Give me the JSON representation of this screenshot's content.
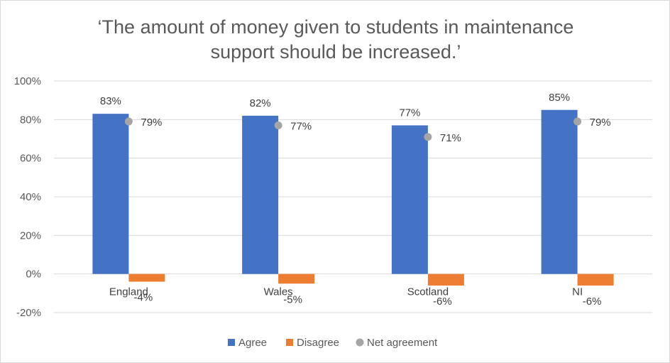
{
  "chart_data": {
    "type": "bar",
    "title_lines": [
      "‘The amount of money given to students in maintenance",
      "support should be increased.’"
    ],
    "categories": [
      "England",
      "Wales",
      "Scotland",
      "NI"
    ],
    "series": [
      {
        "name": "Agree",
        "kind": "bar",
        "color": "#4472c4",
        "values": [
          83,
          82,
          77,
          85
        ],
        "labels": [
          "83%",
          "82%",
          "77%",
          "85%"
        ]
      },
      {
        "name": "Disagree",
        "kind": "bar",
        "color": "#ed7d31",
        "values": [
          -4,
          -5,
          -6,
          -6
        ],
        "labels": [
          "-4%",
          "-5%",
          "-6%",
          "-6%"
        ]
      },
      {
        "name": "Net agreement",
        "kind": "marker",
        "color": "#a5a5a5",
        "values": [
          79,
          77,
          71,
          79
        ],
        "labels": [
          "79%",
          "77%",
          "71%",
          "79%"
        ]
      }
    ],
    "ylim": [
      -20,
      100
    ],
    "yticks": [
      {
        "value": 100,
        "label": "100%"
      },
      {
        "value": 80,
        "label": "80%"
      },
      {
        "value": 60,
        "label": "60%"
      },
      {
        "value": 40,
        "label": "40%"
      },
      {
        "value": 20,
        "label": "20%"
      },
      {
        "value": 0,
        "label": "0%"
      },
      {
        "value": -20,
        "label": "-20%"
      }
    ],
    "grid": true,
    "legend_position": "bottom"
  }
}
